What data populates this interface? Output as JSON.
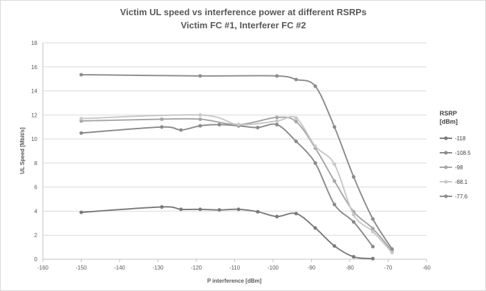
{
  "chart_data": {
    "type": "line",
    "title": "Victim UL speed vs interference power at different RSRPs",
    "subtitle": "Victim FC #1, Interferer FC #2",
    "xlabel": "P interference [dBm]",
    "ylabel": "UL Speed [Mbit/s]",
    "xlim": [
      -160,
      -60
    ],
    "ylim": [
      0,
      18
    ],
    "xticks": [
      "-160",
      "-150",
      "-140",
      "-130",
      "-120",
      "-110",
      "-100",
      "-90",
      "-80",
      "-70",
      "-60"
    ],
    "yticks": [
      "0",
      "2",
      "4",
      "6",
      "8",
      "10",
      "12",
      "14",
      "16",
      "18"
    ],
    "grid": "horizontal",
    "legend_position": "right",
    "legend_title": "RSRP [dBm]",
    "legend_title_lines": [
      "RSRP",
      "[dBm]"
    ],
    "series": [
      {
        "name": "-118",
        "color": "#7a7a7a",
        "points": [
          [
            -150,
            3.9
          ],
          [
            -129,
            4.35
          ],
          [
            -124,
            4.15
          ],
          [
            -119,
            4.15
          ],
          [
            -114,
            4.1
          ],
          [
            -109,
            4.15
          ],
          [
            -104,
            3.95
          ],
          [
            -99,
            3.55
          ],
          [
            -94,
            3.8
          ],
          [
            -89,
            2.6
          ],
          [
            -84,
            1.1
          ],
          [
            -79,
            0.2
          ],
          [
            -74,
            0.05
          ]
        ]
      },
      {
        "name": "-108.5",
        "color": "#8a8a8a",
        "points": [
          [
            -150,
            10.5
          ],
          [
            -129,
            11.0
          ],
          [
            -124,
            10.75
          ],
          [
            -119,
            11.1
          ],
          [
            -114,
            11.2
          ],
          [
            -109,
            11.1
          ],
          [
            -104,
            10.95
          ],
          [
            -99,
            11.2
          ],
          [
            -94,
            9.8
          ],
          [
            -89,
            8.0
          ],
          [
            -84,
            4.55
          ],
          [
            -79,
            3.1
          ],
          [
            -74,
            1.05
          ]
        ]
      },
      {
        "name": "-98",
        "color": "#a6a6a6",
        "points": [
          [
            -150,
            11.5
          ],
          [
            -129,
            11.65
          ],
          [
            -119,
            11.65
          ],
          [
            -109,
            11.2
          ],
          [
            -99,
            11.8
          ],
          [
            -94,
            11.45
          ],
          [
            -89,
            9.25
          ],
          [
            -84,
            6.5
          ],
          [
            -79,
            3.95
          ],
          [
            -74,
            2.55
          ],
          [
            -69,
            0.7
          ]
        ]
      },
      {
        "name": "-88.1",
        "color": "#c8c8c8",
        "points": [
          [
            -150,
            11.7
          ],
          [
            -119,
            12.0
          ],
          [
            -109,
            11.2
          ],
          [
            -99,
            11.5
          ],
          [
            -94,
            11.75
          ],
          [
            -89,
            9.4
          ],
          [
            -84,
            7.9
          ],
          [
            -79,
            3.7
          ],
          [
            -74,
            2.3
          ],
          [
            -69,
            0.55
          ]
        ]
      },
      {
        "name": "-77.6",
        "color": "#8c8c8c",
        "points": [
          [
            -150,
            15.35
          ],
          [
            -119,
            15.25
          ],
          [
            -99,
            15.25
          ],
          [
            -94,
            14.95
          ],
          [
            -89,
            14.4
          ],
          [
            -84,
            11.0
          ],
          [
            -79,
            6.85
          ],
          [
            -74,
            3.35
          ],
          [
            -69,
            0.85
          ]
        ]
      }
    ]
  }
}
